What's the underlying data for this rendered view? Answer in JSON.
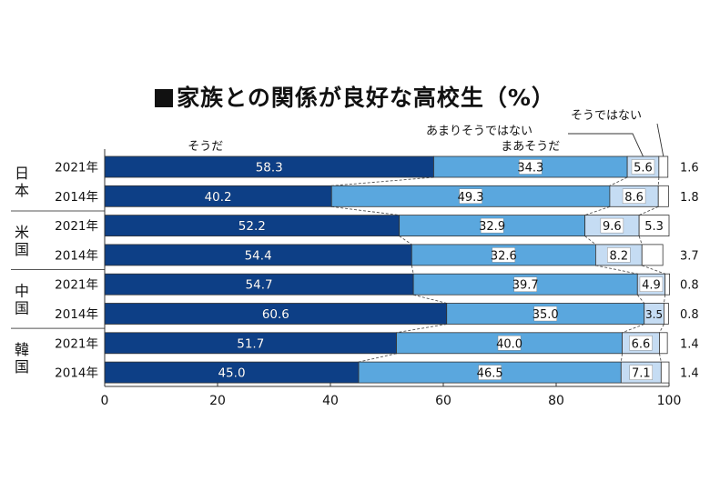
{
  "chart_data": {
    "type": "bar",
    "stacked": true,
    "orientation": "horizontal",
    "title": "家族との関係が良好な高校生（%）",
    "series_names": [
      "そうだ",
      "まあそうだ",
      "あまりそうではない",
      "そうではない"
    ],
    "colors": [
      "#0d3f86",
      "#5aa7de",
      "#c5dcf3",
      "#ffffff"
    ],
    "groups": [
      {
        "country": "日本",
        "rows": [
          {
            "year": "2021年",
            "values": [
              58.3,
              34.3,
              5.6,
              1.6
            ],
            "labels": [
              "58.3",
              "34.3",
              "5.6",
              "1.6"
            ]
          },
          {
            "year": "2014年",
            "values": [
              40.2,
              49.3,
              8.6,
              1.8
            ],
            "labels": [
              "40.2",
              "49.3",
              "8.6",
              "1.8"
            ]
          }
        ]
      },
      {
        "country": "米国",
        "rows": [
          {
            "year": "2021年",
            "values": [
              52.2,
              32.9,
              9.6,
              5.3
            ],
            "labels": [
              "52.2",
              "32.9",
              "9.6",
              "5.3"
            ]
          },
          {
            "year": "2014年",
            "values": [
              54.4,
              32.6,
              8.2,
              3.7
            ],
            "labels": [
              "54.4",
              "32.6",
              "8.2",
              "3.7"
            ]
          }
        ]
      },
      {
        "country": "中国",
        "rows": [
          {
            "year": "2021年",
            "values": [
              54.7,
              39.7,
              4.9,
              0.8
            ],
            "labels": [
              "54.7",
              "39.7",
              "4.9",
              "0.8"
            ]
          },
          {
            "year": "2014年",
            "values": [
              60.6,
              35.0,
              3.5,
              0.8
            ],
            "labels": [
              "60.6",
              "35.0",
              "3.5",
              "0.8"
            ]
          }
        ]
      },
      {
        "country": "韓国",
        "rows": [
          {
            "year": "2021年",
            "values": [
              51.7,
              40.0,
              6.6,
              1.4
            ],
            "labels": [
              "51.7",
              "40.0",
              "6.6",
              "1.4"
            ]
          },
          {
            "year": "2014年",
            "values": [
              45.0,
              46.5,
              7.1,
              1.4
            ],
            "labels": [
              "45.0",
              "46.5",
              "7.1",
              "1.4"
            ]
          }
        ]
      }
    ],
    "x_ticks": [
      "0",
      "20",
      "40",
      "60",
      "80",
      "100"
    ],
    "xlim": [
      0,
      100
    ],
    "grid": false
  }
}
